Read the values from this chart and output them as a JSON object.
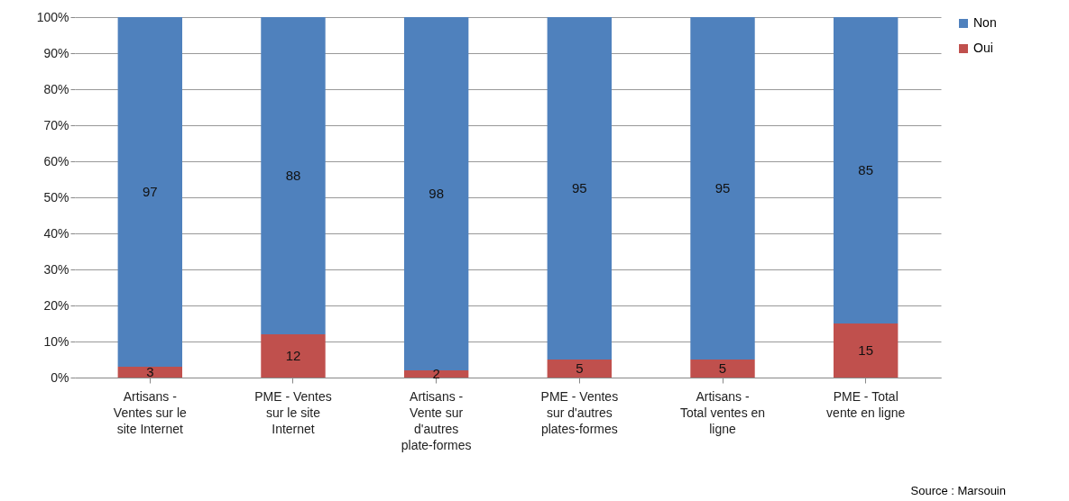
{
  "chart_data": {
    "type": "bar",
    "stacked": true,
    "categories": [
      "Artisans - Ventes sur le site Internet",
      "PME - Ventes sur le site Internet",
      "Artisans - Vente sur d'autres plate-formes",
      "PME - Ventes sur d'autres plates-formes",
      "Artisans - Total ventes en ligne",
      "PME - Total vente en ligne"
    ],
    "series": [
      {
        "name": "Oui",
        "color": "#c0504d",
        "values": [
          3,
          12,
          2,
          5,
          5,
          15
        ]
      },
      {
        "name": "Non",
        "color": "#4f81bd",
        "values": [
          97,
          88,
          98,
          95,
          95,
          85
        ]
      }
    ],
    "ylim": [
      0,
      100
    ],
    "yticks": [
      {
        "value": 0,
        "label": "0%"
      },
      {
        "value": 10,
        "label": "10%"
      },
      {
        "value": 20,
        "label": "20%"
      },
      {
        "value": 30,
        "label": "30%"
      },
      {
        "value": 40,
        "label": "40%"
      },
      {
        "value": 50,
        "label": "50%"
      },
      {
        "value": 60,
        "label": "60%"
      },
      {
        "value": 70,
        "label": "70%"
      },
      {
        "value": 80,
        "label": "80%"
      },
      {
        "value": 90,
        "label": "90%"
      },
      {
        "value": 100,
        "label": "100%"
      }
    ],
    "grid": "y",
    "legend": "right",
    "data_labels": true,
    "annotations": [
      "Source : Marsouin"
    ]
  }
}
